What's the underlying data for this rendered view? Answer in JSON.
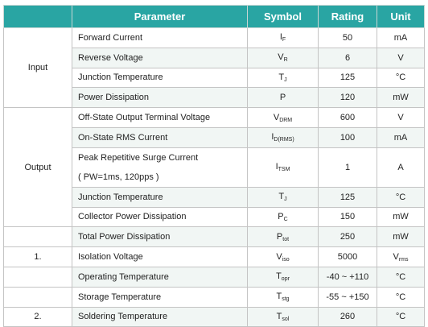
{
  "table": {
    "header": [
      "Parameter",
      "Symbol",
      "Rating",
      "Unit"
    ],
    "sections": [
      {
        "label": "Input",
        "rows": [
          {
            "parameter": [
              "Forward Current"
            ],
            "symbol": {
              "main": "I",
              "sub": "F"
            },
            "rating": "50",
            "unit": {
              "main": "mA"
            }
          },
          {
            "parameter": [
              "Reverse Voltage"
            ],
            "symbol": {
              "main": "V",
              "sub": "R"
            },
            "rating": "6",
            "unit": {
              "main": "V"
            }
          },
          {
            "parameter": [
              "Junction Temperature"
            ],
            "symbol": {
              "main": "T",
              "sub": "J"
            },
            "rating": "125",
            "unit": {
              "main": "°C"
            }
          },
          {
            "parameter": [
              "Power Dissipation"
            ],
            "symbol": {
              "main": "P"
            },
            "rating": "120",
            "unit": {
              "main": "mW"
            }
          }
        ]
      },
      {
        "label": "Output",
        "rows": [
          {
            "parameter": [
              "Off-State Output Terminal Voltage"
            ],
            "symbol": {
              "main": "V",
              "sub": "DRM"
            },
            "rating": "600",
            "unit": {
              "main": "V"
            }
          },
          {
            "parameter": [
              "On-State RMS Current"
            ],
            "symbol": {
              "main": "I",
              "sub": "D(RMS)"
            },
            "rating": "100",
            "unit": {
              "main": "mA"
            }
          },
          {
            "parameter": [
              "Peak Repetitive Surge Current",
              "( PW=1ms, 120pps )"
            ],
            "symbol": {
              "main": "I",
              "sub": "TSM"
            },
            "rating": "1",
            "unit": {
              "main": "A"
            }
          },
          {
            "parameter": [
              "Junction Temperature"
            ],
            "symbol": {
              "main": "T",
              "sub": "J"
            },
            "rating": "125",
            "unit": {
              "main": "°C"
            }
          },
          {
            "parameter": [
              "Collector Power Dissipation"
            ],
            "symbol": {
              "main": "P",
              "sub": "C"
            },
            "rating": "150",
            "unit": {
              "main": "mW"
            }
          }
        ]
      },
      {
        "rows": [
          {
            "parameter": [
              "Total Power Dissipation"
            ],
            "symbol": {
              "main": "P",
              "sub": "tot"
            },
            "rating": "250",
            "unit": {
              "main": "mW"
            }
          }
        ]
      },
      {
        "label": "1.",
        "rows": [
          {
            "parameter": [
              "Isolation Voltage"
            ],
            "symbol": {
              "main": "V",
              "sub": "iso"
            },
            "rating": "5000",
            "unit": {
              "main": "V",
              "sub": "rms"
            }
          }
        ]
      },
      {
        "rows": [
          {
            "parameter": [
              "Operating Temperature"
            ],
            "symbol": {
              "main": "T",
              "sub": "opr"
            },
            "rating": "-40 ~ +110",
            "unit": {
              "main": "°C"
            }
          }
        ]
      },
      {
        "rows": [
          {
            "parameter": [
              "Storage Temperature"
            ],
            "symbol": {
              "main": "T",
              "sub": "stg"
            },
            "rating": "-55 ~ +150",
            "unit": {
              "main": "°C"
            }
          }
        ]
      },
      {
        "label": "2.",
        "rows": [
          {
            "parameter": [
              "Soldering Temperature"
            ],
            "symbol": {
              "main": "T",
              "sub": "sol"
            },
            "rating": "260",
            "unit": {
              "main": "°C"
            }
          }
        ]
      }
    ]
  }
}
